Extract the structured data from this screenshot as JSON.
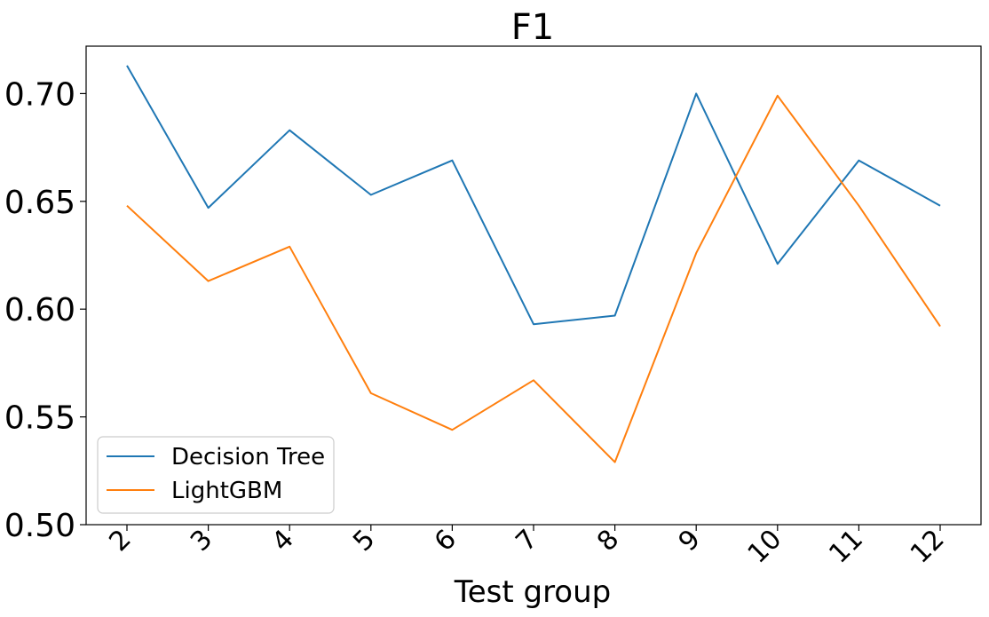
{
  "chart_data": {
    "type": "line",
    "title": "F1",
    "xlabel": "Test group",
    "ylabel": "",
    "categories": [
      "2",
      "3",
      "4",
      "5",
      "6",
      "7",
      "8",
      "9",
      "10",
      "11",
      "12"
    ],
    "yticks": [
      "0.50",
      "0.55",
      "0.60",
      "0.65",
      "0.70"
    ],
    "ylim": [
      0.5,
      0.722
    ],
    "grid": false,
    "legend_position": "lower-left",
    "series": [
      {
        "name": "Decision Tree",
        "color": "#1f77b4",
        "values": [
          0.713,
          0.647,
          0.683,
          0.653,
          0.669,
          0.593,
          0.597,
          0.7,
          0.621,
          0.669,
          0.648
        ]
      },
      {
        "name": "LightGBM",
        "color": "#ff7f0e",
        "values": [
          0.648,
          0.613,
          0.629,
          0.561,
          0.544,
          0.567,
          0.529,
          0.626,
          0.699,
          0.648,
          0.592
        ]
      }
    ]
  }
}
